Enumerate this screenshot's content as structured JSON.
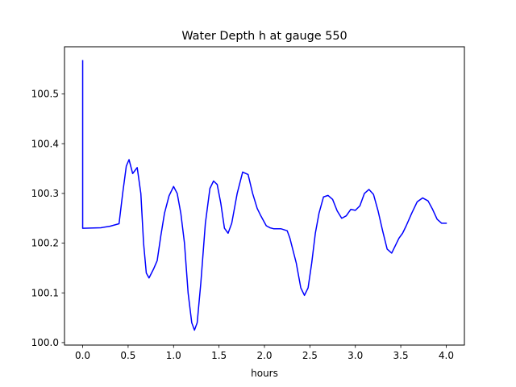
{
  "chart_data": {
    "type": "line",
    "title": "Water Depth h at gauge 550",
    "xlabel": "hours",
    "ylabel": "",
    "xlim": [
      -0.2,
      4.2
    ],
    "ylim": [
      99.995,
      100.595
    ],
    "xticks": [
      0.0,
      0.5,
      1.0,
      1.5,
      2.0,
      2.5,
      3.0,
      3.5,
      4.0
    ],
    "xtick_labels": [
      "0.0",
      "0.5",
      "1.0",
      "1.5",
      "2.0",
      "2.5",
      "3.0",
      "3.5",
      "4.0"
    ],
    "yticks": [
      100.0,
      100.1,
      100.2,
      100.3,
      100.4,
      100.5
    ],
    "ytick_labels": [
      "100.0",
      "100.1",
      "100.2",
      "100.3",
      "100.4",
      "100.5"
    ],
    "grid": false,
    "series": [
      {
        "color": "#0000ff",
        "x": [
          0.0,
          0.0,
          0.0,
          0.2,
          0.3,
          0.4,
          0.44,
          0.48,
          0.51,
          0.55,
          0.6,
          0.64,
          0.67,
          0.7,
          0.73,
          0.78,
          0.82,
          0.86,
          0.9,
          0.95,
          1.0,
          1.04,
          1.08,
          1.12,
          1.16,
          1.2,
          1.23,
          1.26,
          1.3,
          1.35,
          1.4,
          1.44,
          1.48,
          1.52,
          1.56,
          1.6,
          1.64,
          1.7,
          1.76,
          1.82,
          1.87,
          1.92,
          1.96,
          2.02,
          2.06,
          2.1,
          2.18,
          2.25,
          2.28,
          2.35,
          2.4,
          2.44,
          2.48,
          2.52,
          2.56,
          2.6,
          2.65,
          2.7,
          2.75,
          2.8,
          2.85,
          2.9,
          2.95,
          3.0,
          3.05,
          3.1,
          3.15,
          3.2,
          3.25,
          3.3,
          3.35,
          3.4,
          3.44,
          3.48,
          3.52,
          3.56,
          3.62,
          3.68,
          3.74,
          3.8,
          3.85,
          3.9,
          3.95,
          4.0
        ],
        "values": [
          100.567,
          100.3,
          100.23,
          100.231,
          100.234,
          100.239,
          100.3,
          100.355,
          100.368,
          100.34,
          100.352,
          100.3,
          100.2,
          100.14,
          100.13,
          100.148,
          100.165,
          100.215,
          100.26,
          100.295,
          100.314,
          100.3,
          100.26,
          100.2,
          100.1,
          100.04,
          100.025,
          100.04,
          100.12,
          100.24,
          100.31,
          100.325,
          100.318,
          100.28,
          100.23,
          100.22,
          100.24,
          100.3,
          100.343,
          100.338,
          100.3,
          100.27,
          100.255,
          100.235,
          100.231,
          100.229,
          100.229,
          100.225,
          100.21,
          100.16,
          100.11,
          100.095,
          100.11,
          100.16,
          100.22,
          100.26,
          100.293,
          100.296,
          100.288,
          100.265,
          100.25,
          100.255,
          100.268,
          100.266,
          100.275,
          100.3,
          100.308,
          100.298,
          100.265,
          100.225,
          100.188,
          100.18,
          100.195,
          100.21,
          100.22,
          100.235,
          100.26,
          100.283,
          100.291,
          100.285,
          100.268,
          100.248,
          100.24,
          100.24
        ]
      }
    ]
  }
}
